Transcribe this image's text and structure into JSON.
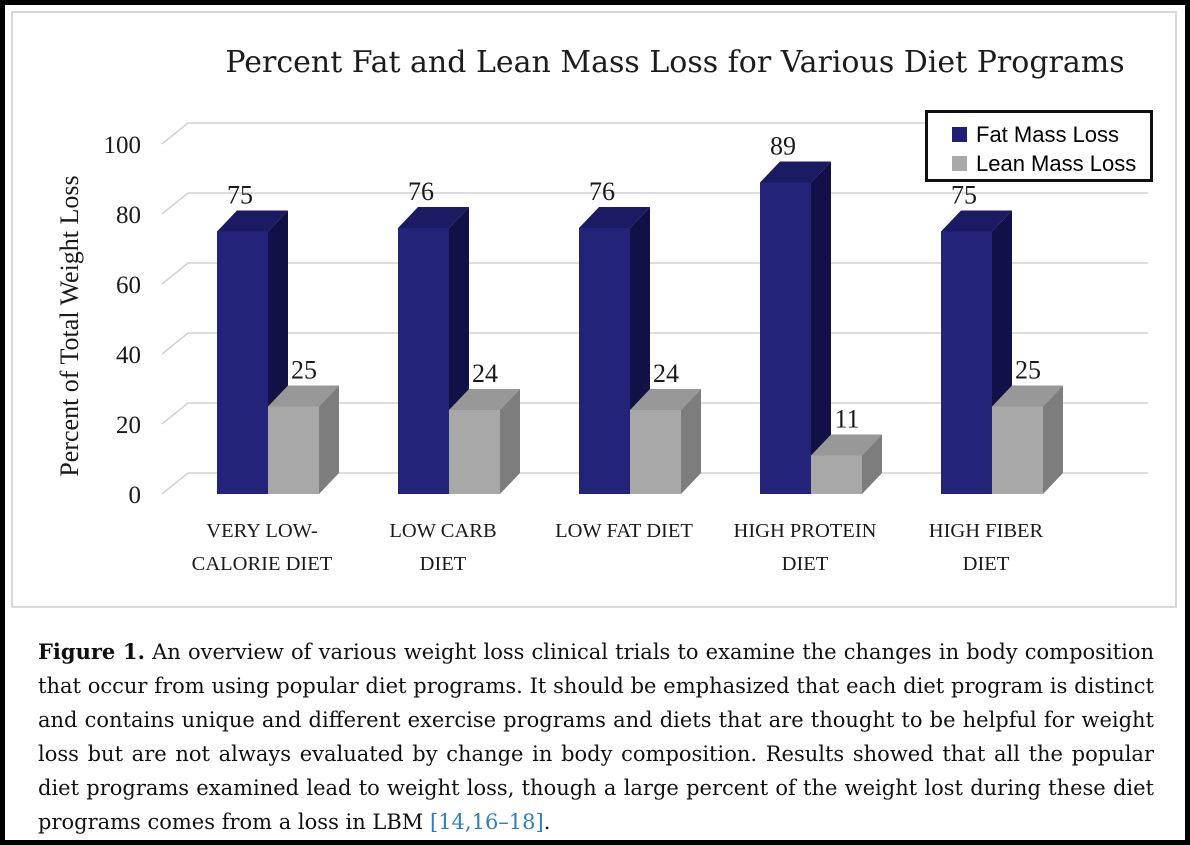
{
  "chart_data": {
    "type": "bar",
    "variant": "3d-clustered-column",
    "title": "Percent Fat and Lean Mass Loss for Various Diet Programs",
    "xlabel": "",
    "ylabel": "Percent of Total Weight Loss",
    "ylim": [
      0,
      100
    ],
    "yticks": [
      0,
      20,
      40,
      60,
      80,
      100
    ],
    "grid": true,
    "legend_position": "top-right",
    "categories": [
      "VERY LOW-CALORIE DIET",
      "LOW CARB DIET",
      "LOW FAT DIET",
      "HIGH PROTEIN DIET",
      "HIGH FIBER DIET"
    ],
    "category_label_lines": [
      [
        "VERY LOW-",
        "CALORIE DIET"
      ],
      [
        "LOW CARB",
        "DIET"
      ],
      [
        "LOW FAT DIET"
      ],
      [
        "HIGH PROTEIN",
        "DIET"
      ],
      [
        "HIGH FIBER",
        "DIET"
      ]
    ],
    "series": [
      {
        "name": "Fat Mass Loss",
        "values": [
          75,
          76,
          76,
          89,
          75
        ],
        "color_front": "#23237a",
        "color_top": "#1b1b63",
        "color_side": "#111148",
        "legend_color": "#1f1f78"
      },
      {
        "name": "Lean Mass Loss",
        "values": [
          25,
          24,
          24,
          11,
          25
        ],
        "color_front": "#a8a8a8",
        "color_top": "#989898",
        "color_side": "#7d7d7d",
        "legend_color": "#a9a9a9"
      }
    ],
    "gridline_color": "#d2d2d2",
    "text_color": "#1a1a1a"
  },
  "caption": {
    "label": "Figure 1.",
    "text_before_citation": " An overview of various weight loss clinical trials to examine the changes in body composition that occur from using popular diet programs.  It should be emphasized that each diet program is distinct and contains unique and different exercise programs and diets that are thought to be helpful for weight loss but are not always evaluated by change in body composition. Results showed that all the popular diet programs examined lead to weight loss, though a large percent of the weight lost during these diet programs comes from a loss in LBM ",
    "citation": "[14,16–18]",
    "after_citation": ".",
    "citation_color": "#2e7fbe"
  }
}
